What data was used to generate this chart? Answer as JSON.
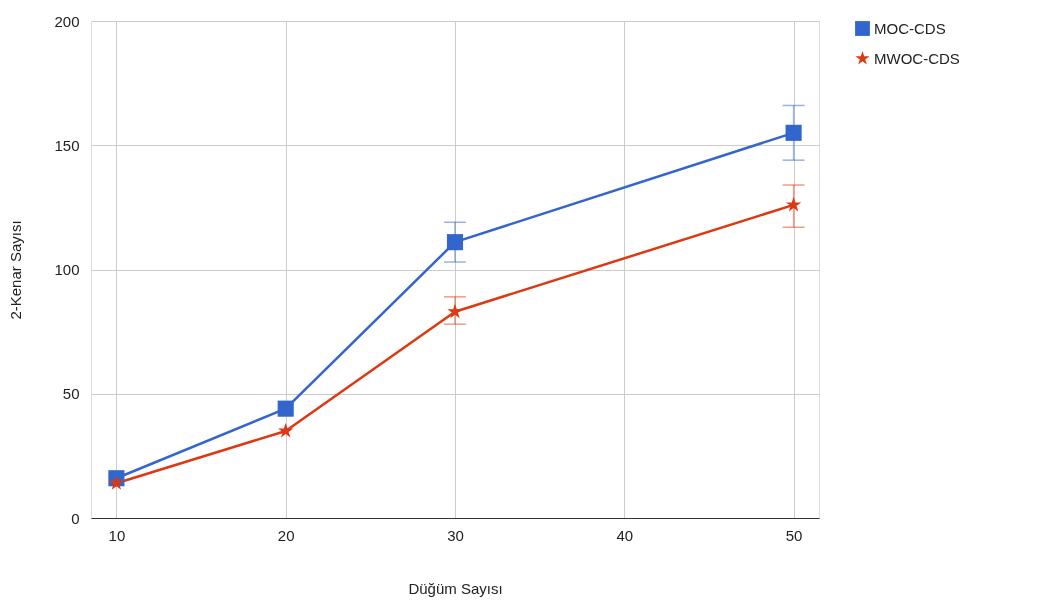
{
  "chart_data": {
    "type": "line",
    "xlabel": "Düğüm Sayısı",
    "ylabel": "2-Kenar Sayısı",
    "x": [
      10,
      20,
      30,
      50
    ],
    "series": [
      {
        "name": "MOC-CDS",
        "color": "#3366cc",
        "marker": "square",
        "values": [
          16,
          44,
          111,
          155
        ],
        "errors": [
          null,
          null,
          [
            103,
            119
          ],
          [
            144,
            166
          ]
        ]
      },
      {
        "name": "MWOC-CDS",
        "color": "#dc3912",
        "marker": "star",
        "values": [
          14,
          35,
          83,
          126
        ],
        "errors": [
          null,
          null,
          [
            78,
            89
          ],
          [
            117,
            134
          ]
        ]
      }
    ],
    "xlim": [
      8.5,
      51.5
    ],
    "xticks": [
      10,
      20,
      30,
      40,
      50
    ],
    "ylim": [
      0,
      200
    ],
    "yticks": [
      0,
      50,
      100,
      150,
      200
    ],
    "grid": true,
    "legend": "top right",
    "line_style": "solid"
  }
}
